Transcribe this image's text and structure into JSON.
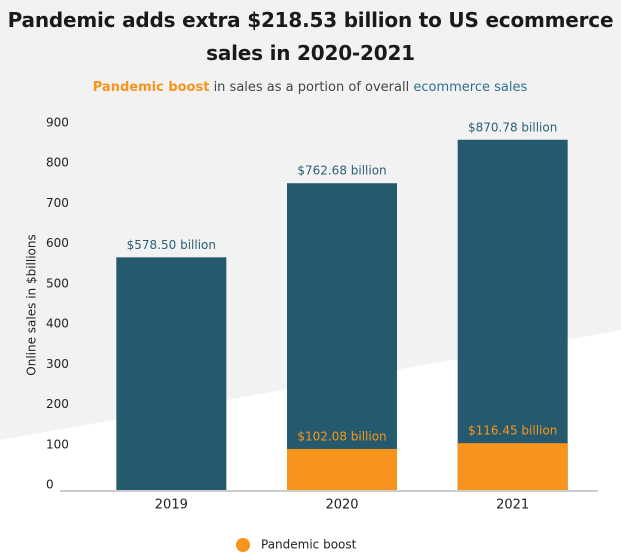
{
  "chart_data": {
    "type": "bar",
    "barmode": "overlay",
    "title": "Pandemic adds extra $218.53 billion to US ecommerce sales in 2020-2021",
    "subtitle": [
      "Pandemic boost",
      " in sales as a portion of overall ",
      "ecommerce sales"
    ],
    "y_label": "Online sales in $billions",
    "categories": [
      "2019",
      "2020",
      "2021"
    ],
    "series": [
      {
        "color": "#255a6e",
        "label_color": "#2e5f78",
        "values": [
          578.5,
          762.68,
          870.78
        ],
        "value_labels": [
          "$578.50 billion",
          "$762.68 billion",
          "$870.78 billion"
        ]
      },
      {
        "name": "Pandemic boost",
        "color": "#f7941d",
        "label_color": "#f7941d",
        "values": [
          null,
          102.08,
          116.45
        ],
        "value_labels": [
          null,
          "$102.08 billion",
          "$116.45 billion"
        ]
      }
    ],
    "ylim": [
      0,
      900
    ],
    "yticks": [
      0,
      100,
      200,
      300,
      400,
      500,
      600,
      700,
      800,
      900
    ],
    "grid": false
  }
}
